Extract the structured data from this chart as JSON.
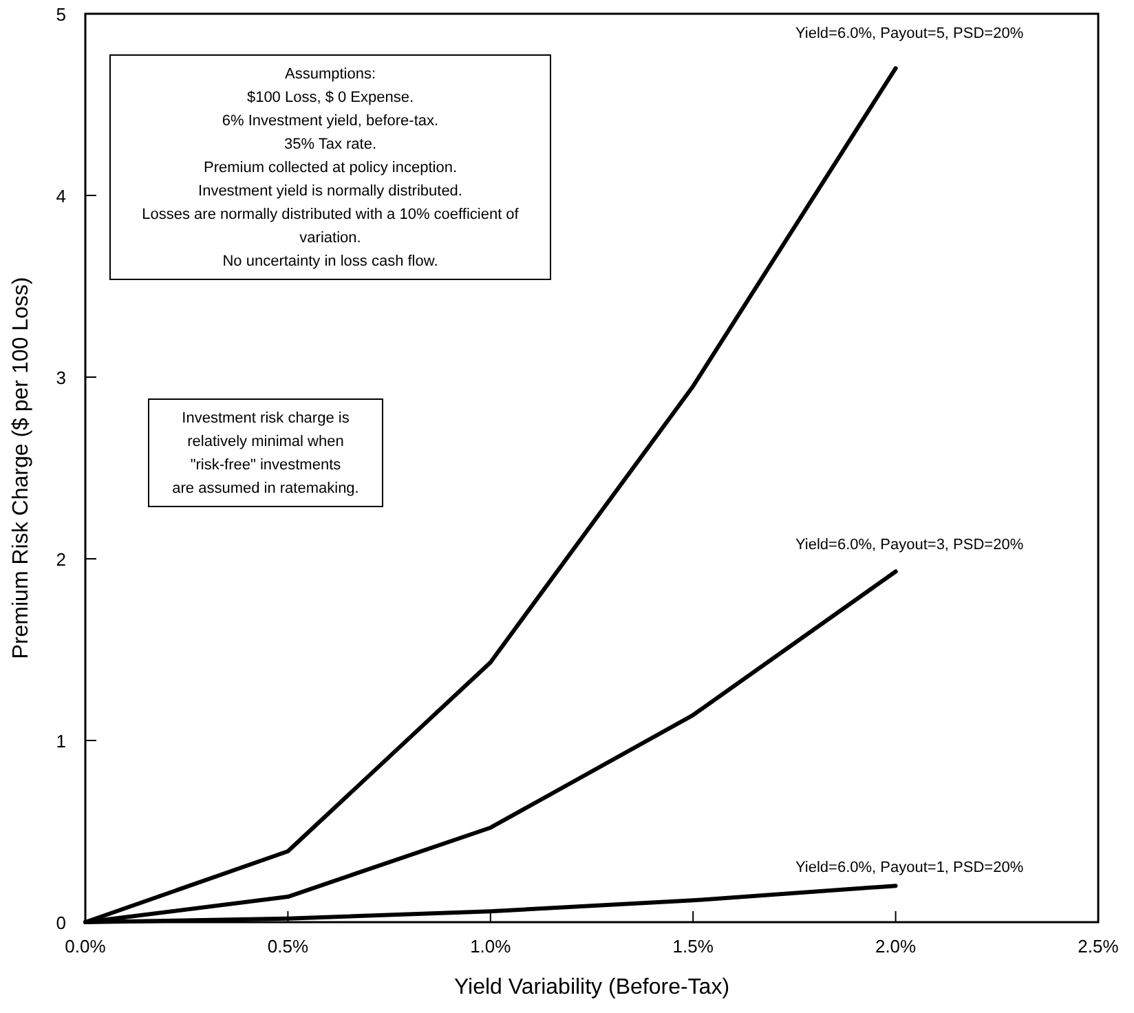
{
  "chart_data": {
    "type": "line",
    "xlabel": "Yield Variability (Before-Tax)",
    "ylabel": "Premium Risk Charge ($ per 100 Loss)",
    "x": [
      0,
      0.5,
      1.0,
      1.5,
      2.0
    ],
    "series": [
      {
        "name": "Yield=6.0%, Payout=5, PSD=20%",
        "color": "#000000",
        "values": [
          0,
          0.39,
          1.43,
          2.95,
          4.7
        ]
      },
      {
        "name": "Yield=6.0%, Payout=3, PSD=20%",
        "color": "#000000",
        "values": [
          0,
          0.14,
          0.52,
          1.14,
          1.93
        ]
      },
      {
        "name": "Yield=6.0%, Payout=1, PSD=20%",
        "color": "#000000",
        "values": [
          0,
          0.02,
          0.06,
          0.12,
          0.2
        ]
      }
    ],
    "xlim": [
      0,
      2.5
    ],
    "xticks": [
      {
        "value": 0,
        "label": "0.0%"
      },
      {
        "value": 0.5,
        "label": "0.5%"
      },
      {
        "value": 1.0,
        "label": "1.0%"
      },
      {
        "value": 1.5,
        "label": "1.5%"
      },
      {
        "value": 2.0,
        "label": "2.0%"
      },
      {
        "value": 2.5,
        "label": "2.5%"
      }
    ],
    "ylim": [
      0,
      5
    ],
    "yticks": [
      0,
      1,
      2,
      3,
      4,
      5
    ],
    "grid": false,
    "marker": "none",
    "line_style": "solid",
    "annotations": [
      "Assumptions:\n$100 Loss, $ 0 Expense.\n6% Investment yield, before-tax.\n35% Tax rate.\nPremium collected at policy inception.\nInvestment yield is normally distributed.\nLosses are normally distributed with a 10% coefficient of\nvariation.\nNo uncertainty in loss cash flow.",
      "Investment risk charge is\nrelatively minimal when\n\"risk-free\" investments\nare assumed in ratemaking."
    ]
  }
}
